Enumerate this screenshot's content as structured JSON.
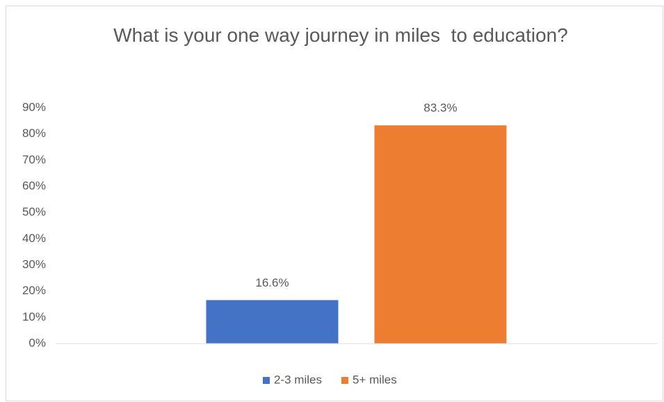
{
  "chart_data": {
    "type": "bar",
    "title": "What is your one way journey in miles  to education?",
    "categories": [
      null
    ],
    "series": [
      {
        "name": "2-3 miles",
        "color": "#4472c4",
        "values": [
          16.6
        ],
        "value_labels": [
          "16.6%"
        ]
      },
      {
        "name": "5+ miles",
        "color": "#ed7d31",
        "values": [
          83.3
        ],
        "value_labels": [
          "83.3%"
        ]
      }
    ],
    "ylim": [
      0,
      90
    ],
    "yticks": [
      {
        "value": 0,
        "label": "0%"
      },
      {
        "value": 10,
        "label": "10%"
      },
      {
        "value": 20,
        "label": "20%"
      },
      {
        "value": 30,
        "label": "30%"
      },
      {
        "value": 40,
        "label": "40%"
      },
      {
        "value": 50,
        "label": "50%"
      },
      {
        "value": 60,
        "label": "60%"
      },
      {
        "value": 70,
        "label": "70%"
      },
      {
        "value": 80,
        "label": "80%"
      },
      {
        "value": 90,
        "label": "90%"
      }
    ],
    "grid": false,
    "legend": "bottom"
  }
}
